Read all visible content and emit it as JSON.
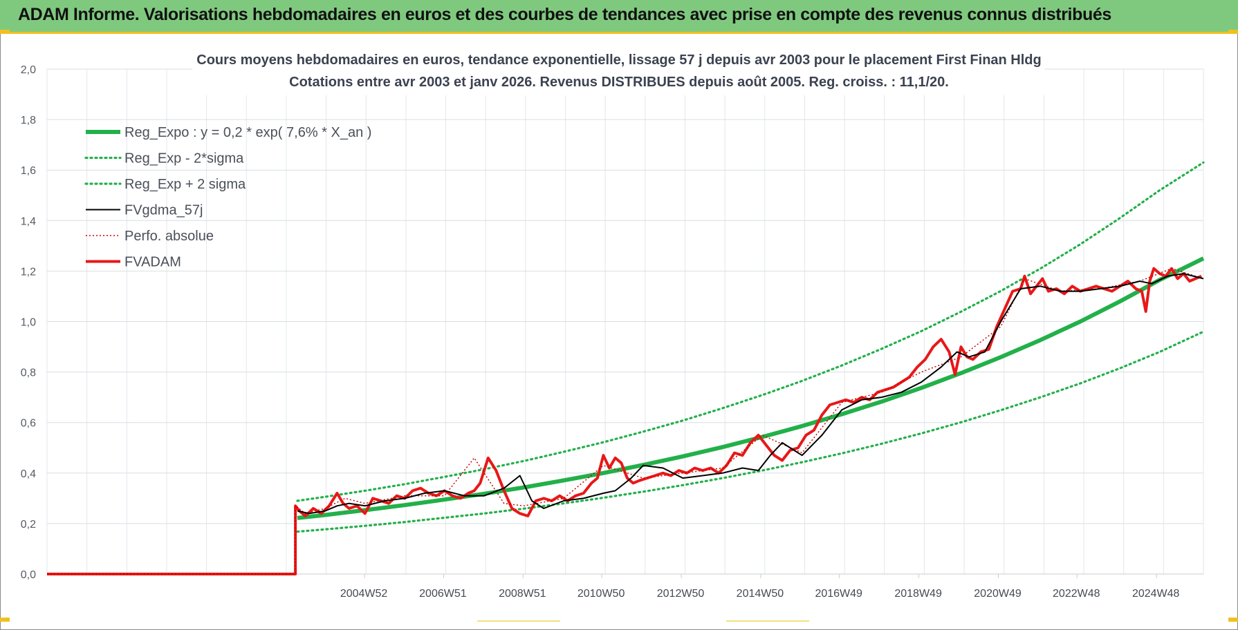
{
  "banner": {
    "title": "ADAM Informe. Valorisations hebdomadaires en euros et des courbes de tendances avec prise en compte des revenus connus distribués"
  },
  "colors": {
    "banner_bg": "#7fc97f",
    "accent": "#f0c020",
    "reg_expo": "#22b04a",
    "fvgdma": "#000000",
    "fvadam": "#e81818",
    "perfo": "#cc0000"
  },
  "chart_data": {
    "type": "line",
    "title_lines": [
      "Cours moyens hebdomadaires en euros, tendance exponentielle, lissage 57 j depuis avr 2003 pour le placement First Finan Hldg",
      "Cotations entre avr 2003 et janv 2026. Revenus DISTRIBUES depuis août 2005. Reg. croiss. : 11,1/20."
    ],
    "ylim": [
      0,
      2.0
    ],
    "y_ticks": [
      "0,0",
      "0,2",
      "0,4",
      "0,6",
      "0,8",
      "1,0",
      "1,2",
      "1,4",
      "1,6",
      "1,8",
      "2,0"
    ],
    "xlim": [
      1997.0,
      2026.1
    ],
    "x_tick_labels": [
      {
        "label": "2004W52",
        "x": 2004.99
      },
      {
        "label": "2006W51",
        "x": 2006.98
      },
      {
        "label": "2008W51",
        "x": 2008.98
      },
      {
        "label": "2010W50",
        "x": 2010.96
      },
      {
        "label": "2012W50",
        "x": 2012.96
      },
      {
        "label": "2014W50",
        "x": 2014.96
      },
      {
        "label": "2016W49",
        "x": 2016.94
      },
      {
        "label": "2018W49",
        "x": 2018.94
      },
      {
        "label": "2020W49",
        "x": 2020.94
      },
      {
        "label": "2022W48",
        "x": 2022.92
      },
      {
        "label": "2024W48",
        "x": 2024.92
      }
    ],
    "legend_position": "top-left",
    "grid": true,
    "legend": [
      {
        "name": "Reg_Expo : y = 0,2 * exp( 7,6% *  X_an )",
        "style": "solid-thick",
        "color": "#22b04a"
      },
      {
        "name": "Reg_Exp - 2*sigma",
        "style": "dotted",
        "color": "#22b04a"
      },
      {
        "name": "Reg_Exp + 2 sigma",
        "style": "dotted",
        "color": "#22b04a"
      },
      {
        "name": "FVgdma_57j",
        "style": "solid",
        "color": "#000000"
      },
      {
        "name": "Perfo. absolue",
        "style": "dotted-thin",
        "color": "#cc0000"
      },
      {
        "name": "FVADAM",
        "style": "solid-thick",
        "color": "#e81818"
      }
    ],
    "series": [
      {
        "name": "Reg_Expo : y = 0,2 * exp( 7,6% *  X_an )",
        "x": [
          2003.3,
          2004,
          2005,
          2006,
          2007,
          2008,
          2009,
          2010,
          2011,
          2012,
          2013,
          2014,
          2015,
          2016,
          2017,
          2018,
          2019,
          2020,
          2021,
          2022,
          2023,
          2024,
          2025,
          2026.1
        ],
        "y": [
          0.222,
          0.234,
          0.253,
          0.273,
          0.295,
          0.318,
          0.343,
          0.371,
          0.4,
          0.432,
          0.466,
          0.503,
          0.543,
          0.586,
          0.633,
          0.683,
          0.737,
          0.796,
          0.859,
          0.927,
          1.0,
          1.08,
          1.165,
          1.25
        ]
      },
      {
        "name": "Reg_Exp - 2*sigma",
        "x": [
          2003.3,
          2004,
          2005,
          2006,
          2007,
          2008,
          2009,
          2010,
          2011,
          2012,
          2013,
          2014,
          2015,
          2016,
          2017,
          2018,
          2019,
          2020,
          2021,
          2022,
          2023,
          2024,
          2025,
          2026.1
        ],
        "y": [
          0.168,
          0.177,
          0.191,
          0.206,
          0.223,
          0.24,
          0.259,
          0.28,
          0.302,
          0.326,
          0.352,
          0.38,
          0.41,
          0.443,
          0.478,
          0.516,
          0.557,
          0.601,
          0.649,
          0.7,
          0.755,
          0.815,
          0.88,
          0.96
        ]
      },
      {
        "name": "Reg_Exp + 2 sigma",
        "x": [
          2003.3,
          2004,
          2005,
          2006,
          2007,
          2008,
          2009,
          2010,
          2011,
          2012,
          2013,
          2014,
          2015,
          2016,
          2017,
          2018,
          2019,
          2020,
          2021,
          2022,
          2023,
          2024,
          2025,
          2026.1
        ],
        "y": [
          0.29,
          0.306,
          0.33,
          0.356,
          0.385,
          0.415,
          0.448,
          0.484,
          0.522,
          0.564,
          0.608,
          0.657,
          0.709,
          0.765,
          0.826,
          0.892,
          0.962,
          1.039,
          1.121,
          1.21,
          1.306,
          1.41,
          1.52,
          1.63
        ]
      },
      {
        "name": "FVgdma_57j",
        "x": [
          2003.3,
          2003.6,
          2004.0,
          2004.3,
          2004.6,
          2005.0,
          2005.5,
          2006.0,
          2006.5,
          2007.0,
          2007.5,
          2008.0,
          2008.5,
          2008.9,
          2009.2,
          2009.5,
          2010.0,
          2010.5,
          2011.0,
          2011.3,
          2011.7,
          2012.0,
          2012.5,
          2013.0,
          2013.5,
          2014.0,
          2014.5,
          2014.9,
          2015.2,
          2015.5,
          2016.0,
          2016.5,
          2017.0,
          2017.5,
          2018.0,
          2018.5,
          2019.0,
          2019.5,
          2019.9,
          2020.2,
          2020.6,
          2021.0,
          2021.5,
          2022.0,
          2022.5,
          2023.0,
          2023.5,
          2024.0,
          2024.5,
          2024.8,
          2025.2,
          2025.6,
          2026.1
        ],
        "y": [
          0.25,
          0.24,
          0.25,
          0.27,
          0.28,
          0.27,
          0.29,
          0.3,
          0.32,
          0.33,
          0.31,
          0.31,
          0.34,
          0.39,
          0.29,
          0.26,
          0.29,
          0.3,
          0.32,
          0.33,
          0.38,
          0.43,
          0.42,
          0.38,
          0.39,
          0.4,
          0.42,
          0.41,
          0.47,
          0.52,
          0.47,
          0.55,
          0.65,
          0.69,
          0.7,
          0.72,
          0.76,
          0.82,
          0.88,
          0.86,
          0.88,
          1.0,
          1.13,
          1.14,
          1.12,
          1.12,
          1.13,
          1.14,
          1.16,
          1.15,
          1.18,
          1.19,
          1.17
        ]
      },
      {
        "name": "Perfo. absolue",
        "x": [
          1997.0,
          2003.25,
          2003.25,
          2003.5,
          2004.0,
          2004.5,
          2005.0,
          2006.0,
          2007.0,
          2007.75,
          2008.5,
          2009.0,
          2010.0,
          2011.0,
          2012.0,
          2013.0,
          2014.0,
          2015.0,
          2016.0,
          2017.0,
          2018.0,
          2019.0,
          2020.0,
          2021.0,
          2021.6,
          2022.5,
          2023.5,
          2024.5,
          2025.3,
          2026.1
        ],
        "y": [
          0.0,
          0.0,
          0.27,
          0.24,
          0.26,
          0.3,
          0.28,
          0.31,
          0.31,
          0.46,
          0.28,
          0.27,
          0.3,
          0.43,
          0.38,
          0.4,
          0.42,
          0.55,
          0.48,
          0.68,
          0.72,
          0.8,
          0.86,
          0.98,
          1.17,
          1.12,
          1.13,
          1.16,
          1.21,
          1.17
        ]
      },
      {
        "name": "FVADAM",
        "x": [
          1997.0,
          2003.25,
          2003.25,
          2003.35,
          2003.5,
          2003.7,
          2003.9,
          2004.1,
          2004.3,
          2004.45,
          2004.6,
          2004.8,
          2005.0,
          2005.2,
          2005.4,
          2005.6,
          2005.8,
          2006.0,
          2006.2,
          2006.4,
          2006.6,
          2006.8,
          2007.0,
          2007.2,
          2007.4,
          2007.6,
          2007.75,
          2007.9,
          2008.1,
          2008.3,
          2008.5,
          2008.7,
          2008.9,
          2009.1,
          2009.3,
          2009.5,
          2009.7,
          2009.9,
          2010.1,
          2010.3,
          2010.5,
          2010.7,
          2010.85,
          2011.0,
          2011.15,
          2011.3,
          2011.45,
          2011.6,
          2011.75,
          2011.9,
          2012.1,
          2012.3,
          2012.5,
          2012.7,
          2012.9,
          2013.1,
          2013.3,
          2013.5,
          2013.7,
          2013.9,
          2014.1,
          2014.3,
          2014.5,
          2014.7,
          2014.9,
          2015.1,
          2015.3,
          2015.5,
          2015.7,
          2015.9,
          2016.1,
          2016.3,
          2016.5,
          2016.7,
          2016.9,
          2017.1,
          2017.3,
          2017.5,
          2017.7,
          2017.9,
          2018.1,
          2018.3,
          2018.5,
          2018.7,
          2018.9,
          2019.1,
          2019.3,
          2019.5,
          2019.7,
          2019.85,
          2020.0,
          2020.15,
          2020.3,
          2020.5,
          2020.7,
          2020.9,
          2021.1,
          2021.3,
          2021.5,
          2021.6,
          2021.75,
          2021.9,
          2022.05,
          2022.2,
          2022.4,
          2022.6,
          2022.8,
          2023.0,
          2023.2,
          2023.4,
          2023.6,
          2023.8,
          2024.0,
          2024.2,
          2024.4,
          2024.55,
          2024.65,
          2024.75,
          2024.85,
          2025.0,
          2025.15,
          2025.3,
          2025.45,
          2025.6,
          2025.75,
          2025.9,
          2026.05
        ],
        "y": [
          0.0,
          0.0,
          0.27,
          0.25,
          0.23,
          0.26,
          0.24,
          0.27,
          0.32,
          0.28,
          0.26,
          0.27,
          0.24,
          0.3,
          0.29,
          0.28,
          0.31,
          0.3,
          0.33,
          0.34,
          0.32,
          0.31,
          0.33,
          0.31,
          0.3,
          0.32,
          0.33,
          0.36,
          0.46,
          0.41,
          0.33,
          0.26,
          0.24,
          0.23,
          0.29,
          0.3,
          0.29,
          0.31,
          0.29,
          0.31,
          0.32,
          0.36,
          0.38,
          0.47,
          0.42,
          0.46,
          0.44,
          0.38,
          0.36,
          0.37,
          0.38,
          0.39,
          0.4,
          0.39,
          0.41,
          0.4,
          0.42,
          0.41,
          0.42,
          0.4,
          0.43,
          0.48,
          0.47,
          0.52,
          0.55,
          0.51,
          0.47,
          0.45,
          0.49,
          0.5,
          0.55,
          0.57,
          0.63,
          0.67,
          0.68,
          0.69,
          0.68,
          0.7,
          0.69,
          0.72,
          0.73,
          0.74,
          0.76,
          0.78,
          0.82,
          0.85,
          0.9,
          0.93,
          0.88,
          0.79,
          0.9,
          0.86,
          0.85,
          0.88,
          0.89,
          0.98,
          1.05,
          1.12,
          1.13,
          1.18,
          1.11,
          1.14,
          1.17,
          1.12,
          1.13,
          1.11,
          1.14,
          1.12,
          1.13,
          1.14,
          1.13,
          1.12,
          1.14,
          1.16,
          1.13,
          1.12,
          1.04,
          1.16,
          1.21,
          1.19,
          1.18,
          1.21,
          1.17,
          1.19,
          1.16,
          1.17,
          1.18
        ]
      }
    ]
  }
}
